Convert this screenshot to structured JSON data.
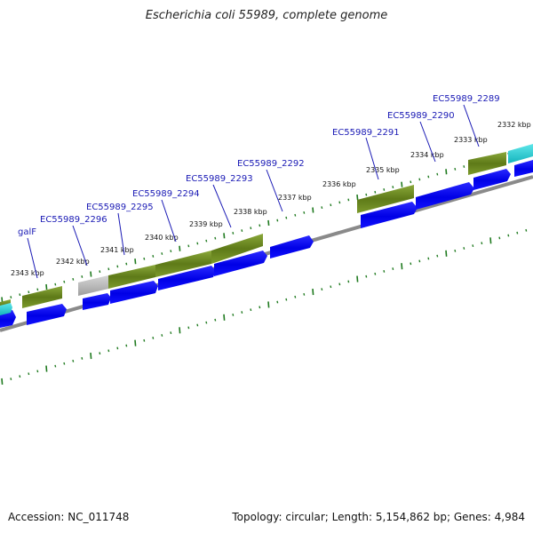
{
  "title": "Escherichia coli 55989, complete genome",
  "footer": {
    "accession": "Accession: NC_011748",
    "summary": "Topology: circular; Length: 5,154,862 bp; Genes: 4,984"
  },
  "colors": {
    "cds": "#0000ee",
    "gene": "#6e8a1e",
    "pseudo": "#b0b0b0",
    "rna": "#2ccfd6",
    "ticks": "#1f7a1f",
    "backbone": "#8a8a8a",
    "label": "#1a1ab5"
  },
  "kbp_ticks": [
    "2343 kbp",
    "2342 kbp",
    "2341 kbp",
    "2340 kbp",
    "2339 kbp",
    "2338 kbp",
    "2337 kbp",
    "2336 kbp",
    "2335 kbp",
    "2334 kbp",
    "2333 kbp",
    "2332 kbp"
  ],
  "gene_labels": [
    "galF",
    "EC55989_2296",
    "EC55989_2295",
    "EC55989_2294",
    "EC55989_2293",
    "EC55989_2292",
    "EC55989_2291",
    "EC55989_2290",
    "EC55989_2289"
  ]
}
